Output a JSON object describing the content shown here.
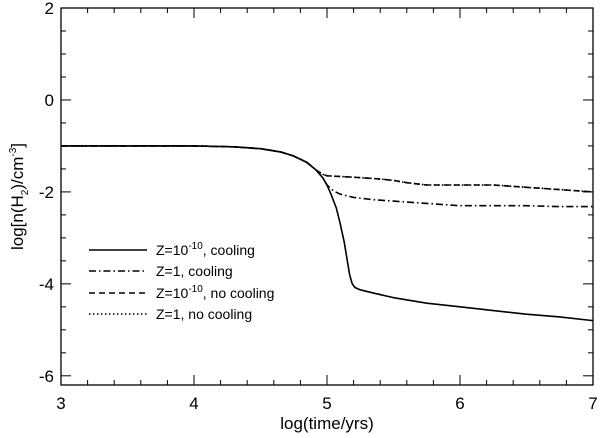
{
  "chart_data": {
    "type": "line",
    "title": "",
    "xlabel": "log(time/yrs)",
    "ylabel": {
      "prefix": "log[n(H",
      "sub": "2",
      "mid": ")/cm",
      "sup": "-3",
      "suffix": "]"
    },
    "xlim": [
      3,
      7
    ],
    "ylim": [
      -6.2,
      2
    ],
    "xticks": [
      3,
      4,
      5,
      6,
      7
    ],
    "yticks": [
      -6,
      -4,
      -2,
      0,
      2
    ],
    "xtick_labels": [
      "3",
      "4",
      "5",
      "6",
      "7"
    ],
    "ytick_labels": [
      "-6",
      "-4",
      "-2",
      "0",
      "2"
    ],
    "grid": false,
    "legend_position": "lower-left",
    "series": [
      {
        "key": "s1",
        "name": {
          "pre": "Z=10",
          "sup": "-10",
          "post": ", cooling"
        },
        "dash": "solid",
        "x": [
          3.0,
          3.5,
          4.0,
          4.3,
          4.5,
          4.65,
          4.75,
          4.85,
          4.92,
          4.97,
          5.0,
          5.03,
          5.07,
          5.1,
          5.13,
          5.15,
          5.17,
          5.19,
          5.21,
          5.25,
          5.35,
          5.5,
          5.75,
          6.0,
          6.25,
          6.5,
          6.75,
          7.0
        ],
        "y": [
          -1.0,
          -1.0,
          -1.0,
          -1.02,
          -1.06,
          -1.13,
          -1.22,
          -1.36,
          -1.53,
          -1.7,
          -1.85,
          -2.05,
          -2.35,
          -2.7,
          -3.1,
          -3.45,
          -3.8,
          -4.0,
          -4.08,
          -4.13,
          -4.2,
          -4.3,
          -4.42,
          -4.5,
          -4.58,
          -4.66,
          -4.72,
          -4.8
        ]
      },
      {
        "key": "s2",
        "name": {
          "pre": "Z=1, cooling",
          "sup": "",
          "post": ""
        },
        "dash": "dashdot",
        "x": [
          3.0,
          3.5,
          4.0,
          4.3,
          4.5,
          4.65,
          4.75,
          4.85,
          4.92,
          4.97,
          5.0,
          5.05,
          5.1,
          5.2,
          5.35,
          5.5,
          5.75,
          6.0,
          6.25,
          6.5,
          6.75,
          7.0
        ],
        "y": [
          -1.0,
          -1.0,
          -1.0,
          -1.02,
          -1.06,
          -1.13,
          -1.22,
          -1.36,
          -1.53,
          -1.7,
          -1.85,
          -1.98,
          -2.05,
          -2.12,
          -2.17,
          -2.2,
          -2.25,
          -2.3,
          -2.3,
          -2.3,
          -2.32,
          -2.32
        ]
      },
      {
        "key": "s3",
        "name": {
          "pre": "Z=10",
          "sup": "-10",
          "post": ", no cooling"
        },
        "dash": "dashed",
        "x": [
          3.0,
          3.5,
          4.0,
          4.3,
          4.5,
          4.65,
          4.75,
          4.85,
          4.92,
          4.97,
          5.0,
          5.2,
          5.4,
          5.5,
          5.6,
          5.75,
          6.0,
          6.25,
          6.5,
          6.75,
          7.0
        ],
        "y": [
          -1.0,
          -1.0,
          -1.0,
          -1.02,
          -1.06,
          -1.13,
          -1.22,
          -1.36,
          -1.53,
          -1.62,
          -1.65,
          -1.68,
          -1.72,
          -1.75,
          -1.8,
          -1.85,
          -1.85,
          -1.85,
          -1.9,
          -1.95,
          -2.0
        ]
      },
      {
        "key": "s4",
        "name": {
          "pre": "Z=1, no cooling",
          "sup": "",
          "post": ""
        },
        "dash": "dotted",
        "x": [
          3.0,
          3.5,
          4.0,
          4.3,
          4.5,
          4.65,
          4.75,
          4.85,
          4.92,
          4.97,
          5.0,
          5.2,
          5.4,
          5.5,
          5.6,
          5.75,
          6.0,
          6.25,
          6.5,
          6.75,
          7.0
        ],
        "y": [
          -1.0,
          -1.0,
          -1.0,
          -1.02,
          -1.06,
          -1.13,
          -1.22,
          -1.36,
          -1.53,
          -1.62,
          -1.65,
          -1.68,
          -1.72,
          -1.75,
          -1.8,
          -1.85,
          -1.85,
          -1.85,
          -1.9,
          -1.95,
          -2.0
        ]
      }
    ]
  }
}
